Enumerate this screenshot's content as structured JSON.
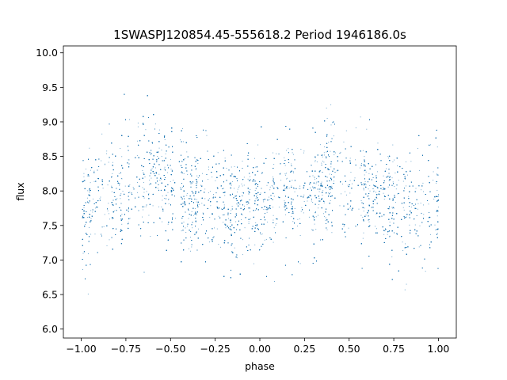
{
  "chart_data": {
    "type": "scatter",
    "title": "1SWASPJ120854.45-555618.2 Period 1946186.0s",
    "xlabel": "phase",
    "ylabel": "flux",
    "xlim": [
      -1.1,
      1.1
    ],
    "ylim": [
      5.87,
      10.1
    ],
    "xticks": [
      -1.0,
      -0.75,
      -0.5,
      -0.25,
      0.0,
      0.25,
      0.5,
      0.75,
      1.0
    ],
    "xtick_labels": [
      "−1.00",
      "−0.75",
      "−0.50",
      "−0.25",
      "0.00",
      "0.25",
      "0.50",
      "0.75",
      "1.00"
    ],
    "yticks": [
      6.0,
      6.5,
      7.0,
      7.5,
      8.0,
      8.5,
      9.0,
      9.5,
      10.0
    ],
    "ytick_labels": [
      "6.0",
      "6.5",
      "7.0",
      "7.5",
      "8.0",
      "8.5",
      "9.0",
      "9.5",
      "10.0"
    ],
    "grid": false,
    "legend": "none",
    "color": "#1f77b4",
    "n_points_approx": 14000,
    "series": [
      {
        "x_range": [
          -1.0,
          1.0
        ],
        "phase_profile": {
          "phase": [
            0.0,
            0.05,
            0.1,
            0.15,
            0.2,
            0.25,
            0.3,
            0.35,
            0.38,
            0.4,
            0.45,
            0.5,
            0.55,
            0.6,
            0.65,
            0.7,
            0.75,
            0.8,
            0.85,
            0.9,
            0.95,
            1.0
          ],
          "median_flux": [
            7.7,
            7.8,
            7.9,
            7.95,
            8.0,
            8.05,
            8.1,
            8.2,
            8.28,
            8.25,
            8.2,
            8.1,
            8.05,
            7.95,
            7.9,
            7.85,
            7.85,
            7.8,
            7.75,
            7.75,
            7.78,
            7.9
          ]
        },
        "scatter_sigma": 0.38,
        "flux_range": [
          6.0,
          9.95
        ]
      }
    ]
  }
}
